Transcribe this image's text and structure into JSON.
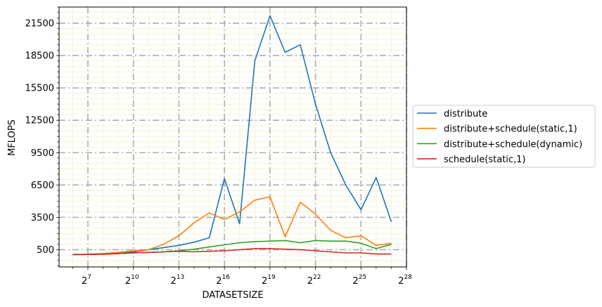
{
  "chart_data": {
    "type": "line",
    "title": "",
    "xlabel": "DATASETSIZE",
    "ylabel": "MFLOPS",
    "x_scale": "log2",
    "x_exponents": [
      6,
      7,
      8,
      9,
      10,
      11,
      12,
      13,
      14,
      15,
      16,
      17,
      18,
      19,
      20,
      21,
      22,
      23,
      24,
      25,
      26,
      27
    ],
    "xlim_exp": [
      5.1,
      28.0
    ],
    "ylim": [
      -1100,
      23000
    ],
    "x_major_ticks_exp": [
      7,
      10,
      13,
      16,
      19,
      22,
      25,
      28
    ],
    "x_tick_base": "2",
    "y_major_ticks": [
      500,
      3500,
      6500,
      9500,
      12500,
      15500,
      18500,
      21500
    ],
    "y_tick_labels": [
      "500",
      "3500",
      "6500",
      "9500",
      "12500",
      "15500",
      "18500",
      "21500"
    ],
    "grid": "major dash-dot gray, minor yellow",
    "legend_position": "center-right outside",
    "series": [
      {
        "name": "distribute",
        "color": "#1f77b4",
        "values": [
          50,
          60,
          100,
          180,
          300,
          500,
          700,
          900,
          1200,
          1600,
          7100,
          2900,
          18000,
          22200,
          18800,
          19500,
          14000,
          9500,
          6500,
          4200,
          7200,
          3100
        ]
      },
      {
        "name": "distribute+schedule(static,1)",
        "color": "#ff7f0e",
        "values": [
          60,
          80,
          150,
          250,
          400,
          500,
          1000,
          1800,
          3000,
          3900,
          3300,
          4000,
          5100,
          5400,
          1700,
          4900,
          3800,
          2300,
          1600,
          1800,
          900,
          1100
        ]
      },
      {
        "name": "distribute+schedule(dynamic)",
        "color": "#2ca02c",
        "values": [
          60,
          70,
          100,
          150,
          200,
          250,
          300,
          400,
          550,
          750,
          950,
          1150,
          1250,
          1300,
          1350,
          1150,
          1350,
          1300,
          1300,
          1100,
          600,
          1000
        ]
      },
      {
        "name": "schedule(static,1)",
        "color": "#d62728",
        "values": [
          40,
          60,
          80,
          140,
          200,
          250,
          300,
          350,
          300,
          350,
          400,
          500,
          600,
          600,
          550,
          500,
          400,
          300,
          200,
          200,
          100,
          100
        ]
      }
    ]
  }
}
